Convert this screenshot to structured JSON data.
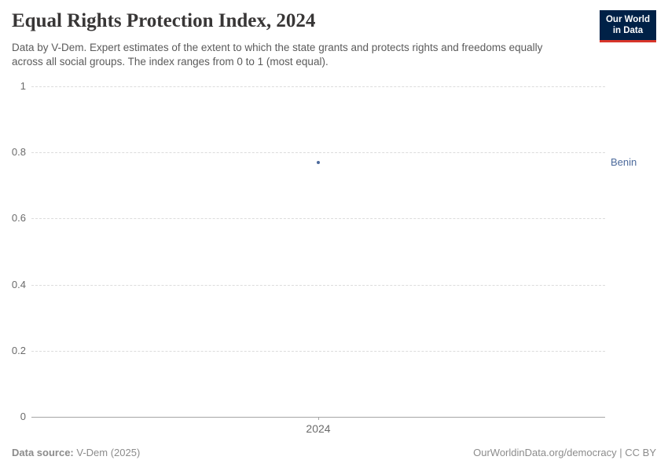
{
  "header": {
    "title": "Equal Rights Protection Index, 2024",
    "subtitle": "Data by V-Dem. Expert estimates of the extent to which the state grants and protects rights and freedoms equally across all social groups. The index ranges from 0 to 1 (most equal)."
  },
  "logo": {
    "line1": "Our World",
    "line2": "in Data",
    "bg_color": "#002147",
    "accent_color": "#d8352a"
  },
  "chart_data": {
    "type": "scatter",
    "title": "Equal Rights Protection Index, 2024",
    "x_categories": [
      "2024"
    ],
    "yticks": [
      "0",
      "0.2",
      "0.4",
      "0.6",
      "0.8",
      "1"
    ],
    "ylim": [
      0,
      1
    ],
    "grid": "horizontal-dashed",
    "gridline_color": "#dcdcdc",
    "axis_color": "#a5a5a5",
    "series": [
      {
        "name": "Benin",
        "x": "2024",
        "y": 0.77,
        "color": "#4c6a9c"
      }
    ]
  },
  "footer": {
    "datasource_label": "Data source:",
    "datasource_value": "V-Dem (2025)",
    "credit": "OurWorldinData.org/democracy | CC BY"
  }
}
